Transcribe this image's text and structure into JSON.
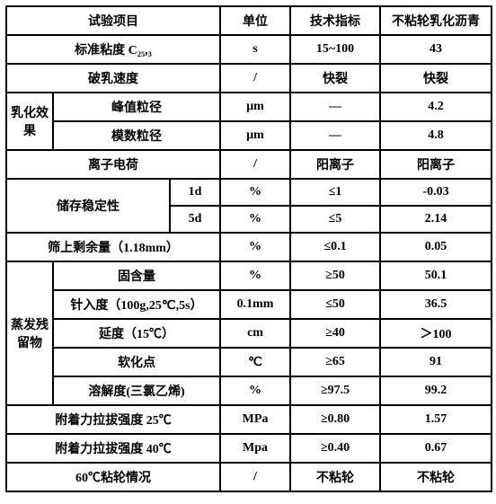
{
  "header": {
    "test_item": "试验项目",
    "unit": "单位",
    "spec": "技术指标",
    "product": "不粘轮乳化沥青"
  },
  "rows": {
    "std_visc": {
      "label": "标准粘度 C₂₅,₃",
      "unit": "s",
      "spec": "15~100",
      "val": "43"
    },
    "demul": {
      "label": "破乳速度",
      "unit": "/",
      "spec": "快裂",
      "val": "快裂"
    },
    "emul_group": "乳化效果",
    "peak": {
      "label": "峰值粒径",
      "unit": "μm",
      "spec": "—",
      "val": "4.2"
    },
    "mode": {
      "label": "模数粒径",
      "unit": "μm",
      "spec": "—",
      "val": "4.8"
    },
    "ion": {
      "label": "离子电荷",
      "unit": "/",
      "spec": "阳离子",
      "val": "阳离子"
    },
    "storage_group": "储存稳定性",
    "s1d": {
      "label": "1d",
      "unit": "%",
      "spec": "≤1",
      "val": "-0.03"
    },
    "s5d": {
      "label": "5d",
      "unit": "%",
      "spec": "≤5",
      "val": "2.14"
    },
    "sieve": {
      "label": "筛上剩余量（1.18mm）",
      "unit": "%",
      "spec": "≤0.1",
      "val": "0.05"
    },
    "evap_group": "蒸发残留物",
    "solid": {
      "label": "固含量",
      "unit": "%",
      "spec": "≥50",
      "val": "50.1"
    },
    "pen": {
      "label": "针入度（100g,25℃,5s）",
      "unit": "0.1mm",
      "spec": "≤50",
      "val": "36.5"
    },
    "duct": {
      "label": "延度（15℃）",
      "unit": "cm",
      "spec": "≥40",
      "val": "＞100"
    },
    "soft": {
      "label": "软化点",
      "unit": "℃",
      "spec": "≥65",
      "val": "91"
    },
    "sol": {
      "label": "溶解度(三氯乙烯)",
      "unit": "%",
      "spec": "≥97.5",
      "val": "99.2"
    },
    "adh25": {
      "label": "附着力拉拔强度 25℃",
      "unit": "MPa",
      "spec": "≥0.80",
      "val": "1.57"
    },
    "adh40": {
      "label": "附着力拉拔强度 40℃",
      "unit": "Mpa",
      "spec": "≥0.40",
      "val": "0.67"
    },
    "stick": {
      "label": "60℃粘轮情况",
      "unit": "/",
      "spec": "不粘轮",
      "val": "不粘轮"
    }
  }
}
